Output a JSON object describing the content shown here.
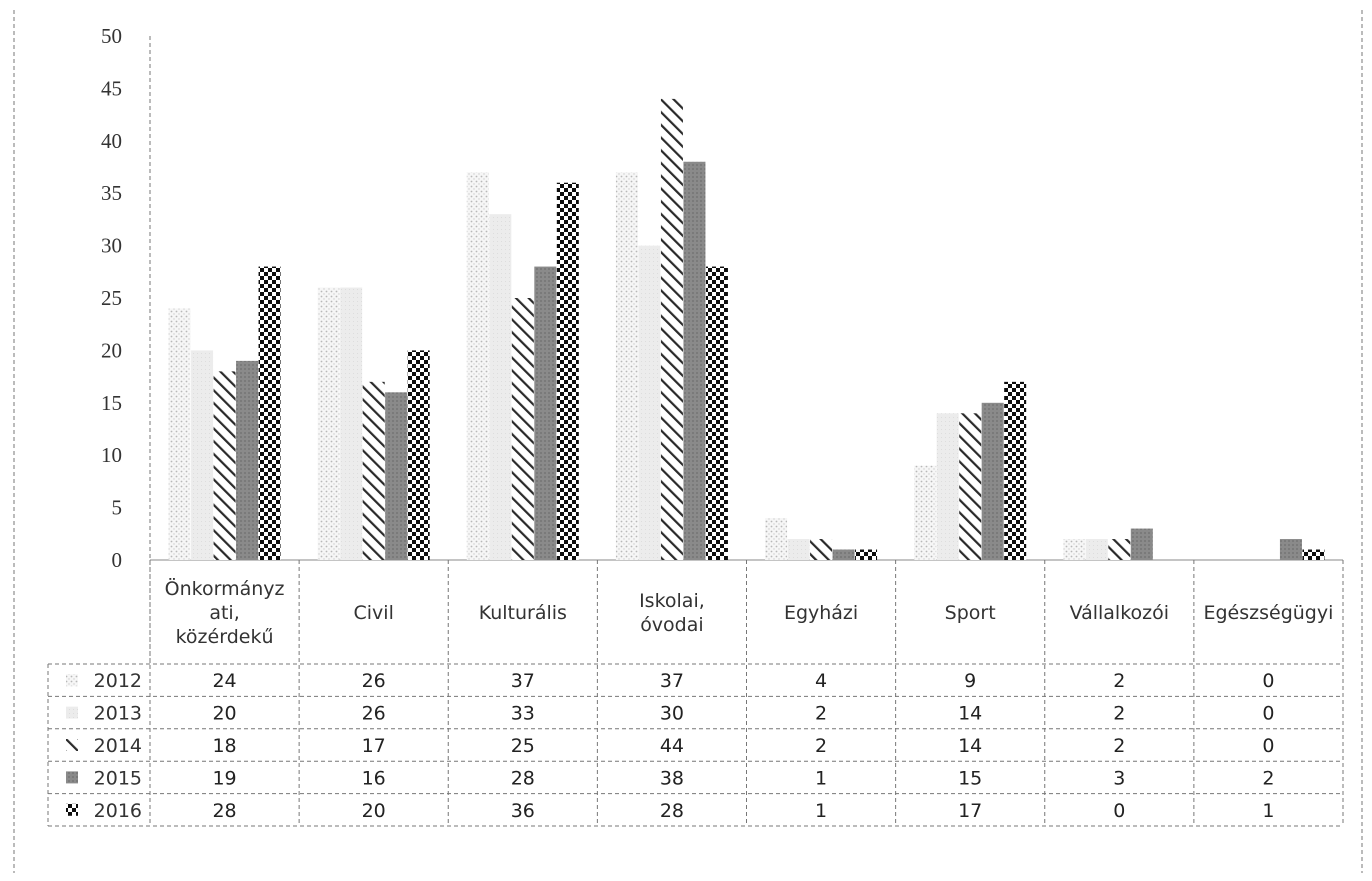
{
  "chart_data": {
    "type": "bar",
    "title": "",
    "xlabel": "",
    "ylabel": "",
    "ylim": [
      0,
      50
    ],
    "yticks": [
      0,
      5,
      10,
      15,
      20,
      25,
      30,
      35,
      40,
      45,
      50
    ],
    "grid": false,
    "legend": "left of data table",
    "data_table": true,
    "categories": [
      [
        "Önkormányz",
        "ati,",
        "közérdekű"
      ],
      [
        "Civil"
      ],
      [
        "Kulturális"
      ],
      [
        "Iskolai,",
        "óvodai"
      ],
      [
        "Egyházi"
      ],
      [
        "Sport"
      ],
      [
        "Vállalkozói"
      ],
      [
        "Egészségügyi"
      ]
    ],
    "series": [
      {
        "name": "2012",
        "pattern": "dots",
        "values": [
          24,
          26,
          37,
          37,
          4,
          9,
          2,
          0
        ]
      },
      {
        "name": "2013",
        "pattern": "light",
        "values": [
          20,
          26,
          33,
          30,
          2,
          14,
          2,
          0
        ]
      },
      {
        "name": "2014",
        "pattern": "diagonal",
        "values": [
          18,
          17,
          25,
          44,
          2,
          14,
          2,
          0
        ]
      },
      {
        "name": "2015",
        "pattern": "grey",
        "values": [
          19,
          16,
          28,
          38,
          1,
          15,
          3,
          2
        ]
      },
      {
        "name": "2016",
        "pattern": "checker",
        "values": [
          28,
          20,
          36,
          28,
          1,
          17,
          0,
          1
        ]
      }
    ]
  }
}
